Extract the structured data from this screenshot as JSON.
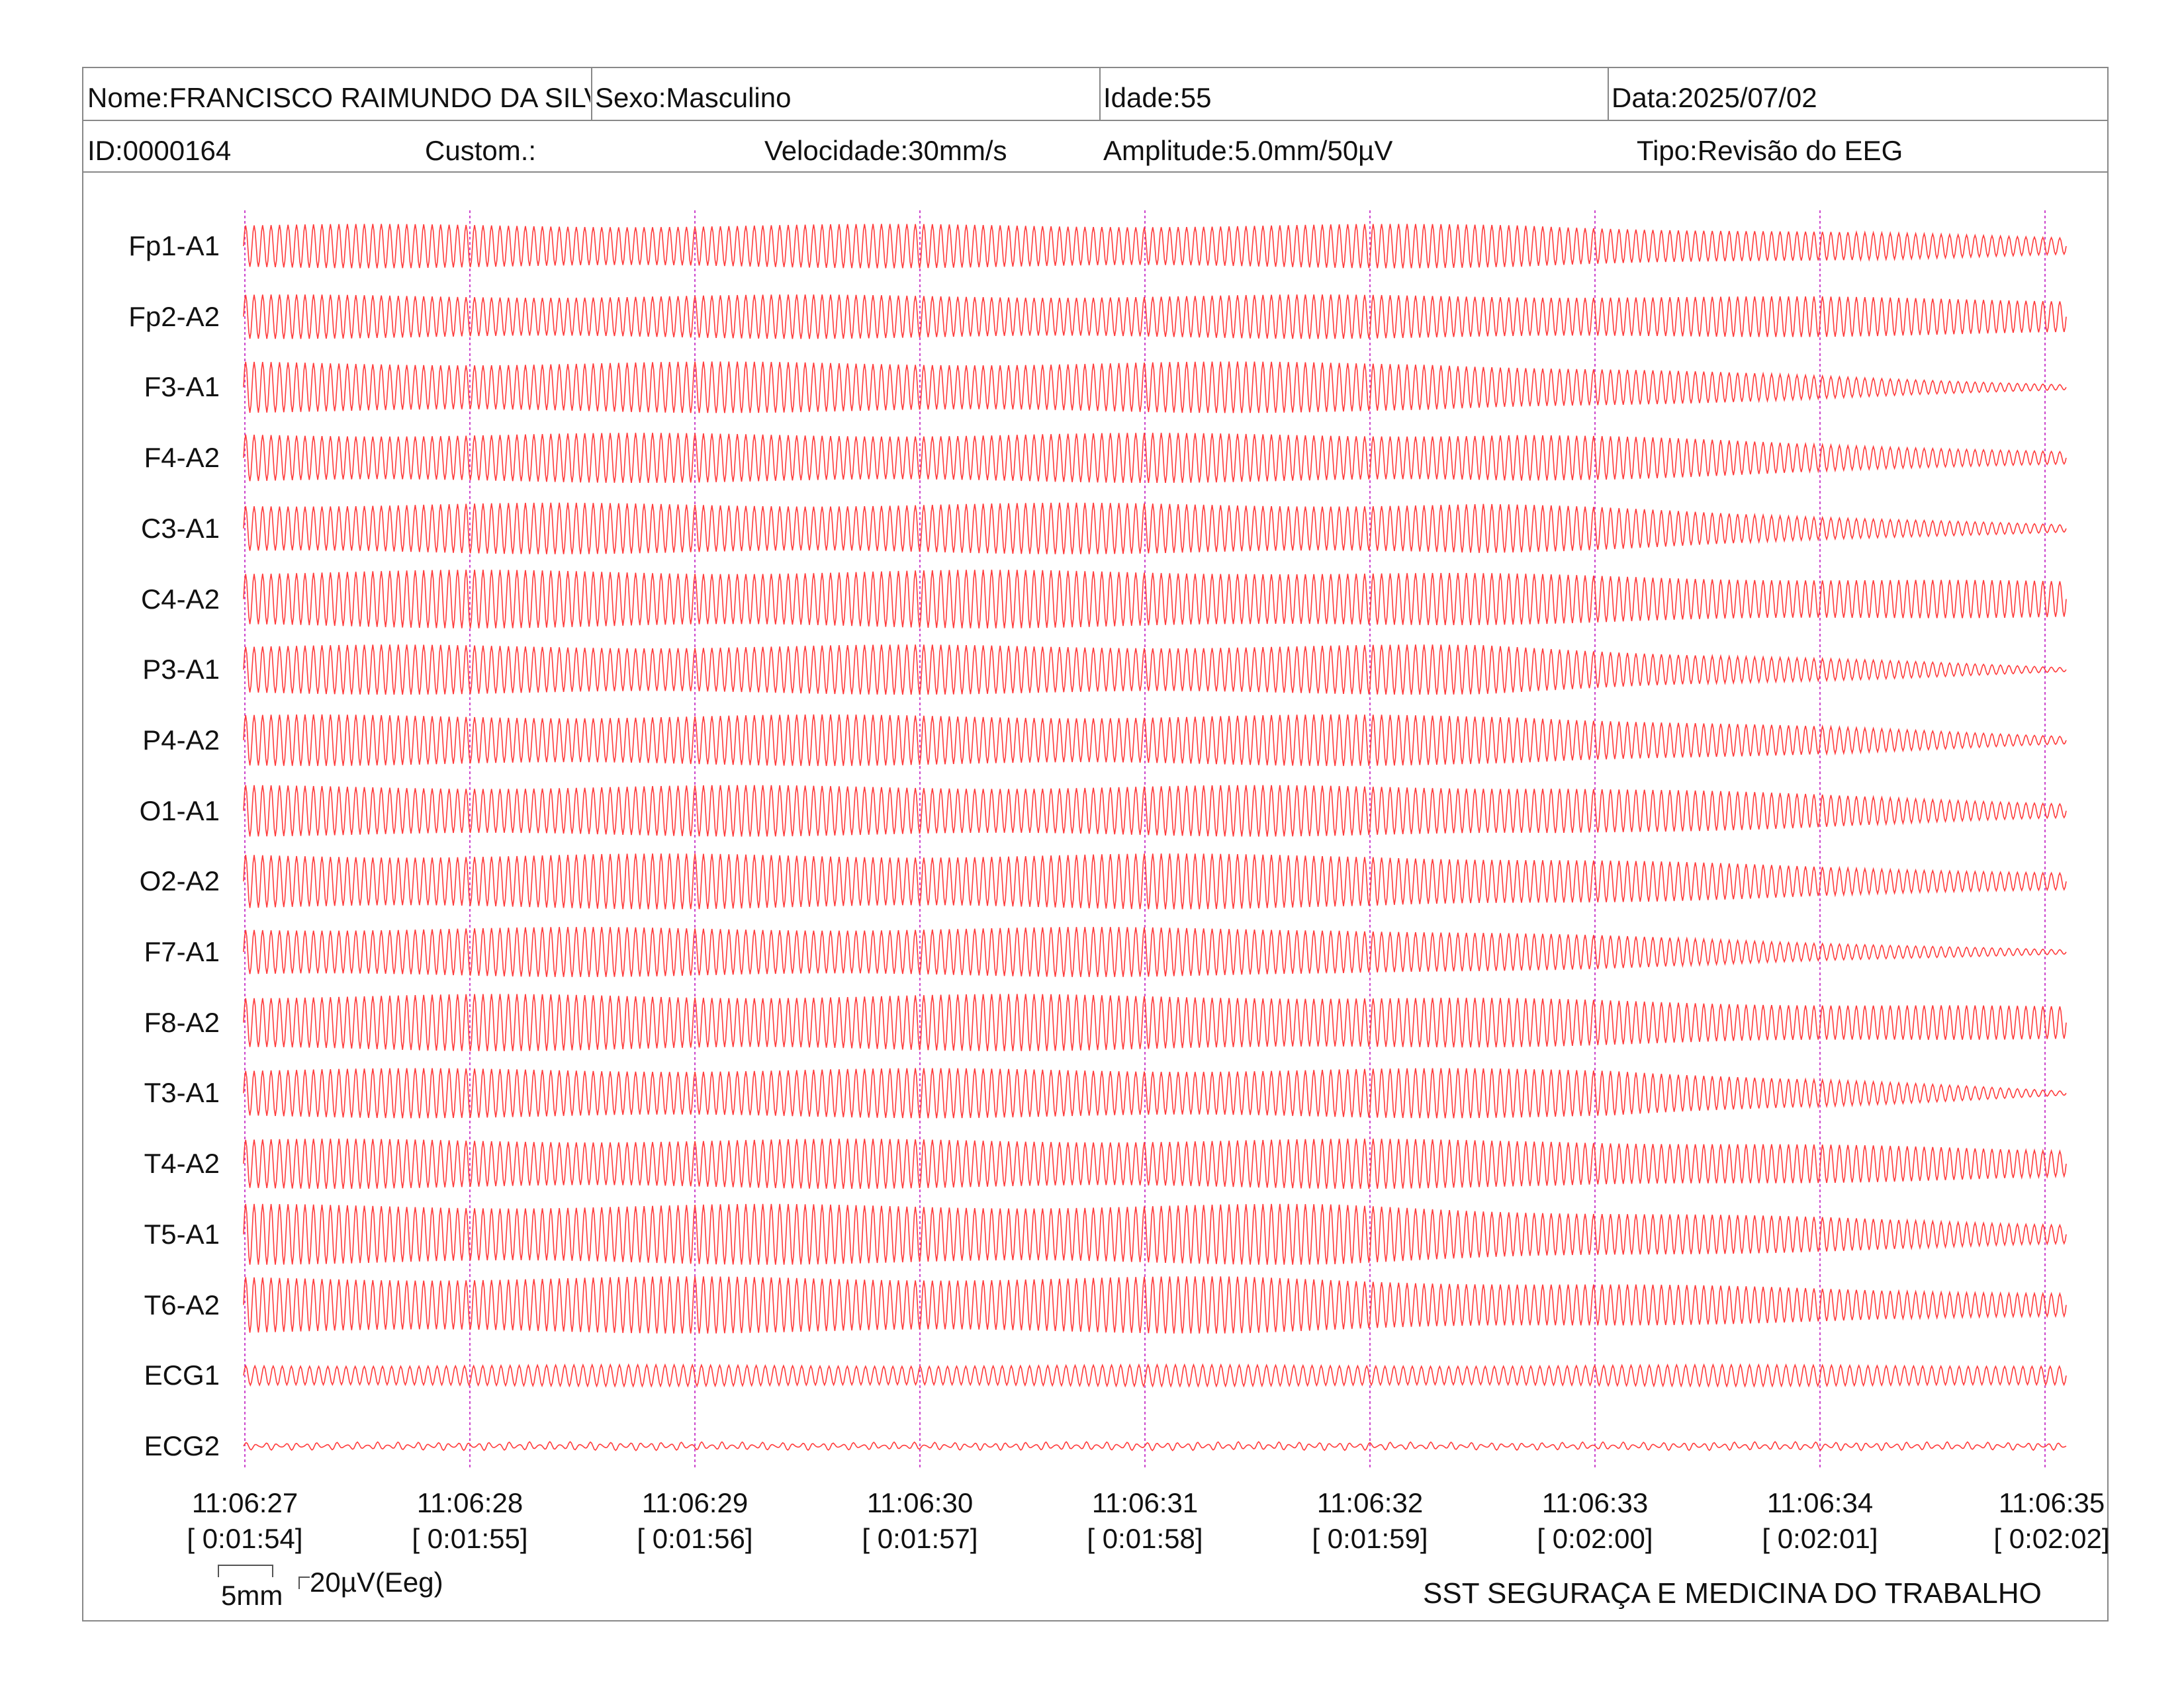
{
  "header": {
    "nome": "Nome:FRANCISCO RAIMUNDO DA SILVA",
    "sexo": "Sexo:Masculino",
    "idade": "Idade:55",
    "data": "Data:2025/07/02",
    "id": "ID:0000164",
    "custom": "Custom.:",
    "velocidade": "Velocidade:30mm/s",
    "amplitude": "Amplitude:5.0mm/50µV",
    "tipo": "Tipo:Revisão do EEG"
  },
  "channels": [
    {
      "label": "Fp1-A1",
      "amp": 0.62,
      "end_amp": 0.25,
      "fade_start": 0.7
    },
    {
      "label": "Fp2-A2",
      "amp": 0.62,
      "end_amp": 0.5,
      "fade_start": 0.75
    },
    {
      "label": "F3-A1",
      "amp": 0.72,
      "end_amp": 0.08,
      "fade_start": 0.65
    },
    {
      "label": "F4-A2",
      "amp": 0.7,
      "end_amp": 0.18,
      "fade_start": 0.7
    },
    {
      "label": "C3-A1",
      "amp": 0.72,
      "end_amp": 0.1,
      "fade_start": 0.68
    },
    {
      "label": "C4-A2",
      "amp": 0.82,
      "end_amp": 0.5,
      "fade_start": 0.55
    },
    {
      "label": "P3-A1",
      "amp": 0.7,
      "end_amp": 0.06,
      "fade_start": 0.68
    },
    {
      "label": "P4-A2",
      "amp": 0.72,
      "end_amp": 0.12,
      "fade_start": 0.7
    },
    {
      "label": "O1-A1",
      "amp": 0.72,
      "end_amp": 0.22,
      "fade_start": 0.72
    },
    {
      "label": "O2-A2",
      "amp": 0.78,
      "end_amp": 0.25,
      "fade_start": 0.62
    },
    {
      "label": "F7-A1",
      "amp": 0.7,
      "end_amp": 0.06,
      "fade_start": 0.6
    },
    {
      "label": "F8-A2",
      "amp": 0.8,
      "end_amp": 0.45,
      "fade_start": 0.55
    },
    {
      "label": "T3-A1",
      "amp": 0.7,
      "end_amp": 0.06,
      "fade_start": 0.75
    },
    {
      "label": "T4-A2",
      "amp": 0.7,
      "end_amp": 0.4,
      "fade_start": 0.72
    },
    {
      "label": "T5-A1",
      "amp": 0.85,
      "end_amp": 0.3,
      "fade_start": 0.6
    },
    {
      "label": "T6-A2",
      "amp": 0.8,
      "end_amp": 0.35,
      "fade_start": 0.55
    },
    {
      "label": "ECG1",
      "amp": 0.3,
      "end_amp": 0.3,
      "fade_start": 1.0
    },
    {
      "label": "ECG2",
      "amp": 0.08,
      "end_amp": 0.08,
      "fade_start": 1.0
    }
  ],
  "time_marks": [
    {
      "clock": "11:06:27",
      "elapsed": "[ 0:01:54]"
    },
    {
      "clock": "11:06:28",
      "elapsed": "[ 0:01:55]"
    },
    {
      "clock": "11:06:29",
      "elapsed": "[ 0:01:56]"
    },
    {
      "clock": "11:06:30",
      "elapsed": "[ 0:01:57]"
    },
    {
      "clock": "11:06:31",
      "elapsed": "[ 0:01:58]"
    },
    {
      "clock": "11:06:32",
      "elapsed": "[ 0:01:59]"
    },
    {
      "clock": "11:06:33",
      "elapsed": "[ 0:02:00]"
    },
    {
      "clock": "11:06:34",
      "elapsed": "[ 0:02:01]"
    },
    {
      "clock": "11:06:35",
      "elapsed": "[ 0:02:02]"
    }
  ],
  "calibration": {
    "time": "5mm",
    "amplitude": "20µV(Eeg)"
  },
  "footer": "SST SEGURAÇA E MEDICINA DO TRABALHO",
  "colors": {
    "trace": "#ff3b3b",
    "marker": "#cc44cc",
    "grid": "#888888"
  }
}
